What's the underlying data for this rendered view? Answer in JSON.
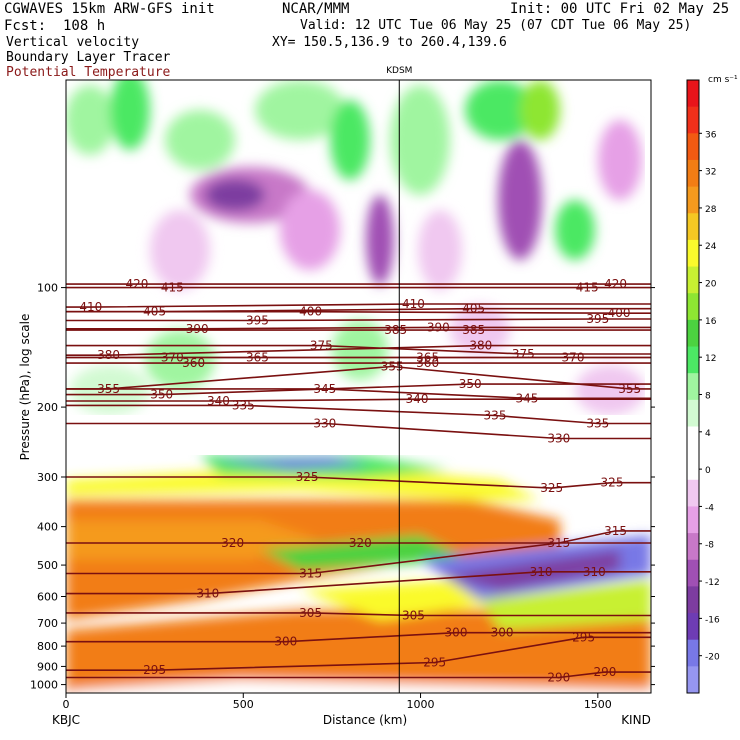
{
  "header": {
    "model": "CGWAVES 15km ARW-GFS init",
    "org": "NCAR/MMM",
    "init": "Init: 00 UTC Fri 02 May 25",
    "fcst": "Fcst:  108 h",
    "valid": "Valid: 12 UTC Tue 06 May 25 (07 CDT Tue 06 May 25)",
    "field1": "Vertical velocity",
    "field2": "Boundary Layer Tracer",
    "field3": "Potential Temperature",
    "xy": "XY= 150.5,136.9 to 260.4,139.6"
  },
  "colors": {
    "theta_contour": "#7a1010",
    "background": "#ffffff"
  },
  "chart_data": {
    "type": "heatmap",
    "title": "",
    "xlabel": "Distance (km)",
    "ylabel": "Pressure (hPa), log scale",
    "x_ticks": [
      0,
      500,
      1000,
      1500
    ],
    "x_range": [
      0,
      1650
    ],
    "y_ticks": [
      100,
      200,
      300,
      400,
      500,
      600,
      700,
      800,
      900,
      1000
    ],
    "y_range": [
      1050,
      30
    ],
    "y_scale": "log",
    "station_left": "KBJC",
    "station_right": "KIND",
    "station_mid": "KDSM",
    "station_mid_km": 940,
    "colorbar": {
      "unit": "cm s⁻¹",
      "labels": [
        "36",
        "32",
        "28",
        "24",
        "20",
        "16",
        "12",
        "8",
        "4",
        "0",
        "-4",
        "-8",
        "-12",
        "-16",
        "-20"
      ],
      "colors": [
        "#e8141a",
        "#f0301a",
        "#f25a12",
        "#f27d14",
        "#f59a1e",
        "#f5c823",
        "#fafa2c",
        "#c8f032",
        "#8ee632",
        "#4cd240",
        "#4ce864",
        "#a0f5a0",
        "#d2fad2",
        "#ffffff",
        "#ffffff",
        "#f0c8f0",
        "#e6a0e6",
        "#c878c8",
        "#a050b4",
        "#7d3ca0",
        "#6e3cb4",
        "#7878e6",
        "#9696f0"
      ]
    },
    "theta_isentropes": [
      {
        "label": "420",
        "points": [
          [
            200,
            98
          ],
          [
            1550,
            98
          ]
        ]
      },
      {
        "label": "415",
        "points": [
          [
            300,
            100
          ],
          [
            1470,
            100
          ]
        ]
      },
      {
        "label": "410",
        "points": [
          [
            70,
            112
          ],
          [
            980,
            110
          ]
        ]
      },
      {
        "label": "405",
        "points": [
          [
            250,
            115
          ],
          [
            1150,
            113
          ]
        ]
      },
      {
        "label": "400",
        "points": [
          [
            690,
            115
          ],
          [
            1560,
            116
          ]
        ]
      },
      {
        "label": "395",
        "points": [
          [
            540,
            121
          ],
          [
            1500,
            120
          ]
        ]
      },
      {
        "label": "390",
        "points": [
          [
            370,
            127
          ],
          [
            1050,
            126
          ]
        ]
      },
      {
        "label": "385",
        "points": [
          [
            930,
            128
          ],
          [
            1150,
            128
          ]
        ]
      },
      {
        "label": "380",
        "points": [
          [
            120,
            148
          ],
          [
            1170,
            140
          ]
        ]
      },
      {
        "label": "375",
        "points": [
          [
            720,
            140
          ],
          [
            1290,
            147
          ]
        ]
      },
      {
        "label": "370",
        "points": [
          [
            300,
            150
          ],
          [
            1430,
            150
          ]
        ]
      },
      {
        "label": "365",
        "points": [
          [
            540,
            150
          ],
          [
            1020,
            150
          ]
        ]
      },
      {
        "label": "360",
        "points": [
          [
            360,
            155
          ],
          [
            1020,
            155
          ]
        ]
      },
      {
        "label": "355",
        "points": [
          [
            120,
            180
          ],
          [
            920,
            158
          ],
          [
            1590,
            180
          ]
        ]
      },
      {
        "label": "350",
        "points": [
          [
            270,
            186
          ],
          [
            1140,
            175
          ]
        ]
      },
      {
        "label": "345",
        "points": [
          [
            730,
            180
          ],
          [
            1300,
            190
          ]
        ]
      },
      {
        "label": "340",
        "points": [
          [
            430,
            193
          ],
          [
            990,
            191
          ]
        ]
      },
      {
        "label": "335",
        "points": [
          [
            500,
            198
          ],
          [
            1210,
            210
          ],
          [
            1500,
            220
          ]
        ]
      },
      {
        "label": "330",
        "points": [
          [
            730,
            220
          ],
          [
            1390,
            240
          ]
        ]
      },
      {
        "label": "325",
        "points": [
          [
            680,
            300
          ],
          [
            1370,
            320
          ],
          [
            1540,
            310
          ]
        ]
      },
      {
        "label": "320",
        "points": [
          [
            470,
            440
          ],
          [
            830,
            440
          ]
        ]
      },
      {
        "label": "315",
        "points": [
          [
            690,
            525
          ],
          [
            1390,
            440
          ],
          [
            1550,
            410
          ]
        ]
      },
      {
        "label": "310",
        "points": [
          [
            400,
            590
          ],
          [
            1340,
            520
          ],
          [
            1490,
            520
          ]
        ]
      },
      {
        "label": "305",
        "points": [
          [
            690,
            660
          ],
          [
            980,
            670
          ]
        ]
      },
      {
        "label": "300",
        "points": [
          [
            620,
            780
          ],
          [
            1100,
            740
          ],
          [
            1230,
            740
          ]
        ]
      },
      {
        "label": "295",
        "points": [
          [
            250,
            920
          ],
          [
            1040,
            880
          ],
          [
            1460,
            760
          ]
        ]
      },
      {
        "label": "290",
        "points": [
          [
            1390,
            960
          ],
          [
            1520,
            930
          ]
        ]
      }
    ]
  }
}
